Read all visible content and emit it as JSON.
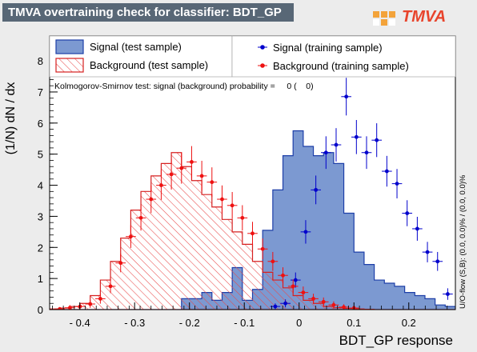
{
  "title": "TMVA overtraining check for classifier: BDT_GP",
  "logo_text": "TMVA",
  "chart_data": {
    "type": "histogram",
    "title": "TMVA overtraining check for classifier: BDT_GP",
    "xlabel": "BDT_GP response",
    "ylabel": "(1/N) dN / dx",
    "xlim": [
      -0.455,
      0.285
    ],
    "ylim": [
      0,
      8.8
    ],
    "xticks": [
      -0.4,
      -0.3,
      -0.2,
      -0.1,
      0,
      0.1,
      0.2
    ],
    "xtick_labels": [
      "- 0.4",
      "- 0.3",
      "- 0.2",
      "- 0.1",
      "0",
      "0.1",
      "0.2"
    ],
    "yticks": [
      0,
      1,
      2,
      3,
      4,
      5,
      6,
      7,
      8
    ],
    "ytick_labels": [
      "0",
      "1",
      "2",
      "3",
      "4",
      "5",
      "6",
      "7",
      "8"
    ],
    "bin_edges_start": -0.455,
    "bin_width": 0.0185,
    "signal_test": [
      0,
      0,
      0,
      0,
      0,
      0,
      0,
      0,
      0,
      0,
      0,
      0,
      0,
      0.35,
      0.35,
      0.55,
      0.3,
      0.55,
      1.35,
      0.3,
      0.65,
      2.55,
      3.85,
      4.95,
      5.75,
      5.25,
      4.95,
      5.05,
      4.7,
      3.1,
      1.85,
      1.45,
      0.95,
      0.85,
      0.75,
      0.55,
      0.45,
      0.35,
      0.15,
      0.1
    ],
    "background_test": [
      0.02,
      0.05,
      0.1,
      0.2,
      0.45,
      0.95,
      1.55,
      2.3,
      3.2,
      3.8,
      4.3,
      4.7,
      5.05,
      4.6,
      4.15,
      3.7,
      3.3,
      2.9,
      2.5,
      2.1,
      1.55,
      1.2,
      0.95,
      0.7,
      0.45,
      0.3,
      0.2,
      0.1,
      0.06,
      0.04,
      0.02,
      0.01,
      0,
      0,
      0,
      0,
      0,
      0,
      0,
      0
    ],
    "signal_train_x": [
      -0.0435,
      -0.025,
      -0.0065,
      0.012,
      0.0305,
      0.049,
      0.0675,
      0.086,
      0.1045,
      0.123,
      0.1415,
      0.16,
      0.1785,
      0.197,
      0.2155,
      0.234,
      0.2525,
      0.271
    ],
    "signal_train_y": [
      0.1,
      0.2,
      0.95,
      2.5,
      3.85,
      5.05,
      5.3,
      6.85,
      5.55,
      5.05,
      5.45,
      4.45,
      4.05,
      3.1,
      2.6,
      1.85,
      1.55,
      0.5
    ],
    "background_train_x": [
      -0.4365,
      -0.418,
      -0.3995,
      -0.381,
      -0.3625,
      -0.344,
      -0.3255,
      -0.307,
      -0.2885,
      -0.27,
      -0.2515,
      -0.233,
      -0.2145,
      -0.196,
      -0.1775,
      -0.159,
      -0.1405,
      -0.122,
      -0.1035,
      -0.085,
      -0.0665,
      -0.048,
      -0.0295,
      -0.011,
      0.0075,
      0.026,
      0.0445,
      0.063,
      0.0815,
      0.1
    ],
    "background_train_y": [
      0.02,
      0.06,
      0.1,
      0.18,
      0.35,
      0.75,
      1.5,
      2.35,
      2.95,
      3.55,
      4.0,
      4.35,
      4.55,
      4.75,
      4.3,
      4.1,
      3.55,
      3.35,
      2.95,
      2.45,
      1.95,
      1.55,
      1.1,
      0.75,
      0.55,
      0.35,
      0.25,
      0.15,
      0.08,
      0.05
    ],
    "legend_entries": [
      "Signal (test sample)",
      "Background (test sample)",
      "Signal (training sample)",
      "Background (training sample)"
    ],
    "legend_placement": "top",
    "annotation": "Kolmogorov-Smirnov test: signal (background) probability =     0 (    0)",
    "side_note": "U/O-flow (S,B): (0.0, 0.0)% / (0.0, 0.0)%",
    "grid": false,
    "colors": {
      "signal_fill": "#7c99d1",
      "signal_line": "#1d3fa8",
      "background_hatch": "#e84a4a",
      "background_line": "#d62020",
      "signal_marker": "#0000cc",
      "background_marker": "#ee1111"
    }
  }
}
